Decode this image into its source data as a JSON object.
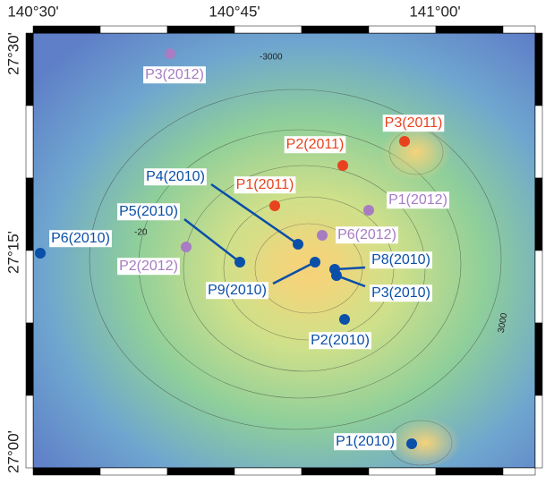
{
  "map": {
    "lon_ticks": [
      "140°30'",
      "140°45'",
      "141°00'"
    ],
    "lat_ticks": [
      "27°30'",
      "27°15'",
      "27°00'"
    ],
    "contour_labels": [
      "-3000",
      "3000",
      "-20"
    ],
    "stations": [
      {
        "label": "P3(2012)",
        "color": "#a77cc2"
      },
      {
        "label": "P3(2011)",
        "color": "#e8431f"
      },
      {
        "label": "P2(2011)",
        "color": "#e8431f"
      },
      {
        "label": "P1(2011)",
        "color": "#e8431f"
      },
      {
        "label": "P1(2012)",
        "color": "#a77cc2"
      },
      {
        "label": "P4(2010)",
        "color": "#0a4fa8"
      },
      {
        "label": "P5(2010)",
        "color": "#0a4fa8"
      },
      {
        "label": "P6(2010)",
        "color": "#0a4fa8"
      },
      {
        "label": "P6(2012)",
        "color": "#a77cc2"
      },
      {
        "label": "P2(2012)",
        "color": "#a77cc2"
      },
      {
        "label": "P9(2010)",
        "color": "#0a4fa8"
      },
      {
        "label": "P8(2010)",
        "color": "#0a4fa8"
      },
      {
        "label": "P3(2010)",
        "color": "#0a4fa8"
      },
      {
        "label": "P2(2010)",
        "color": "#0a4fa8"
      },
      {
        "label": "P1(2010)",
        "color": "#0a4fa8"
      }
    ]
  }
}
